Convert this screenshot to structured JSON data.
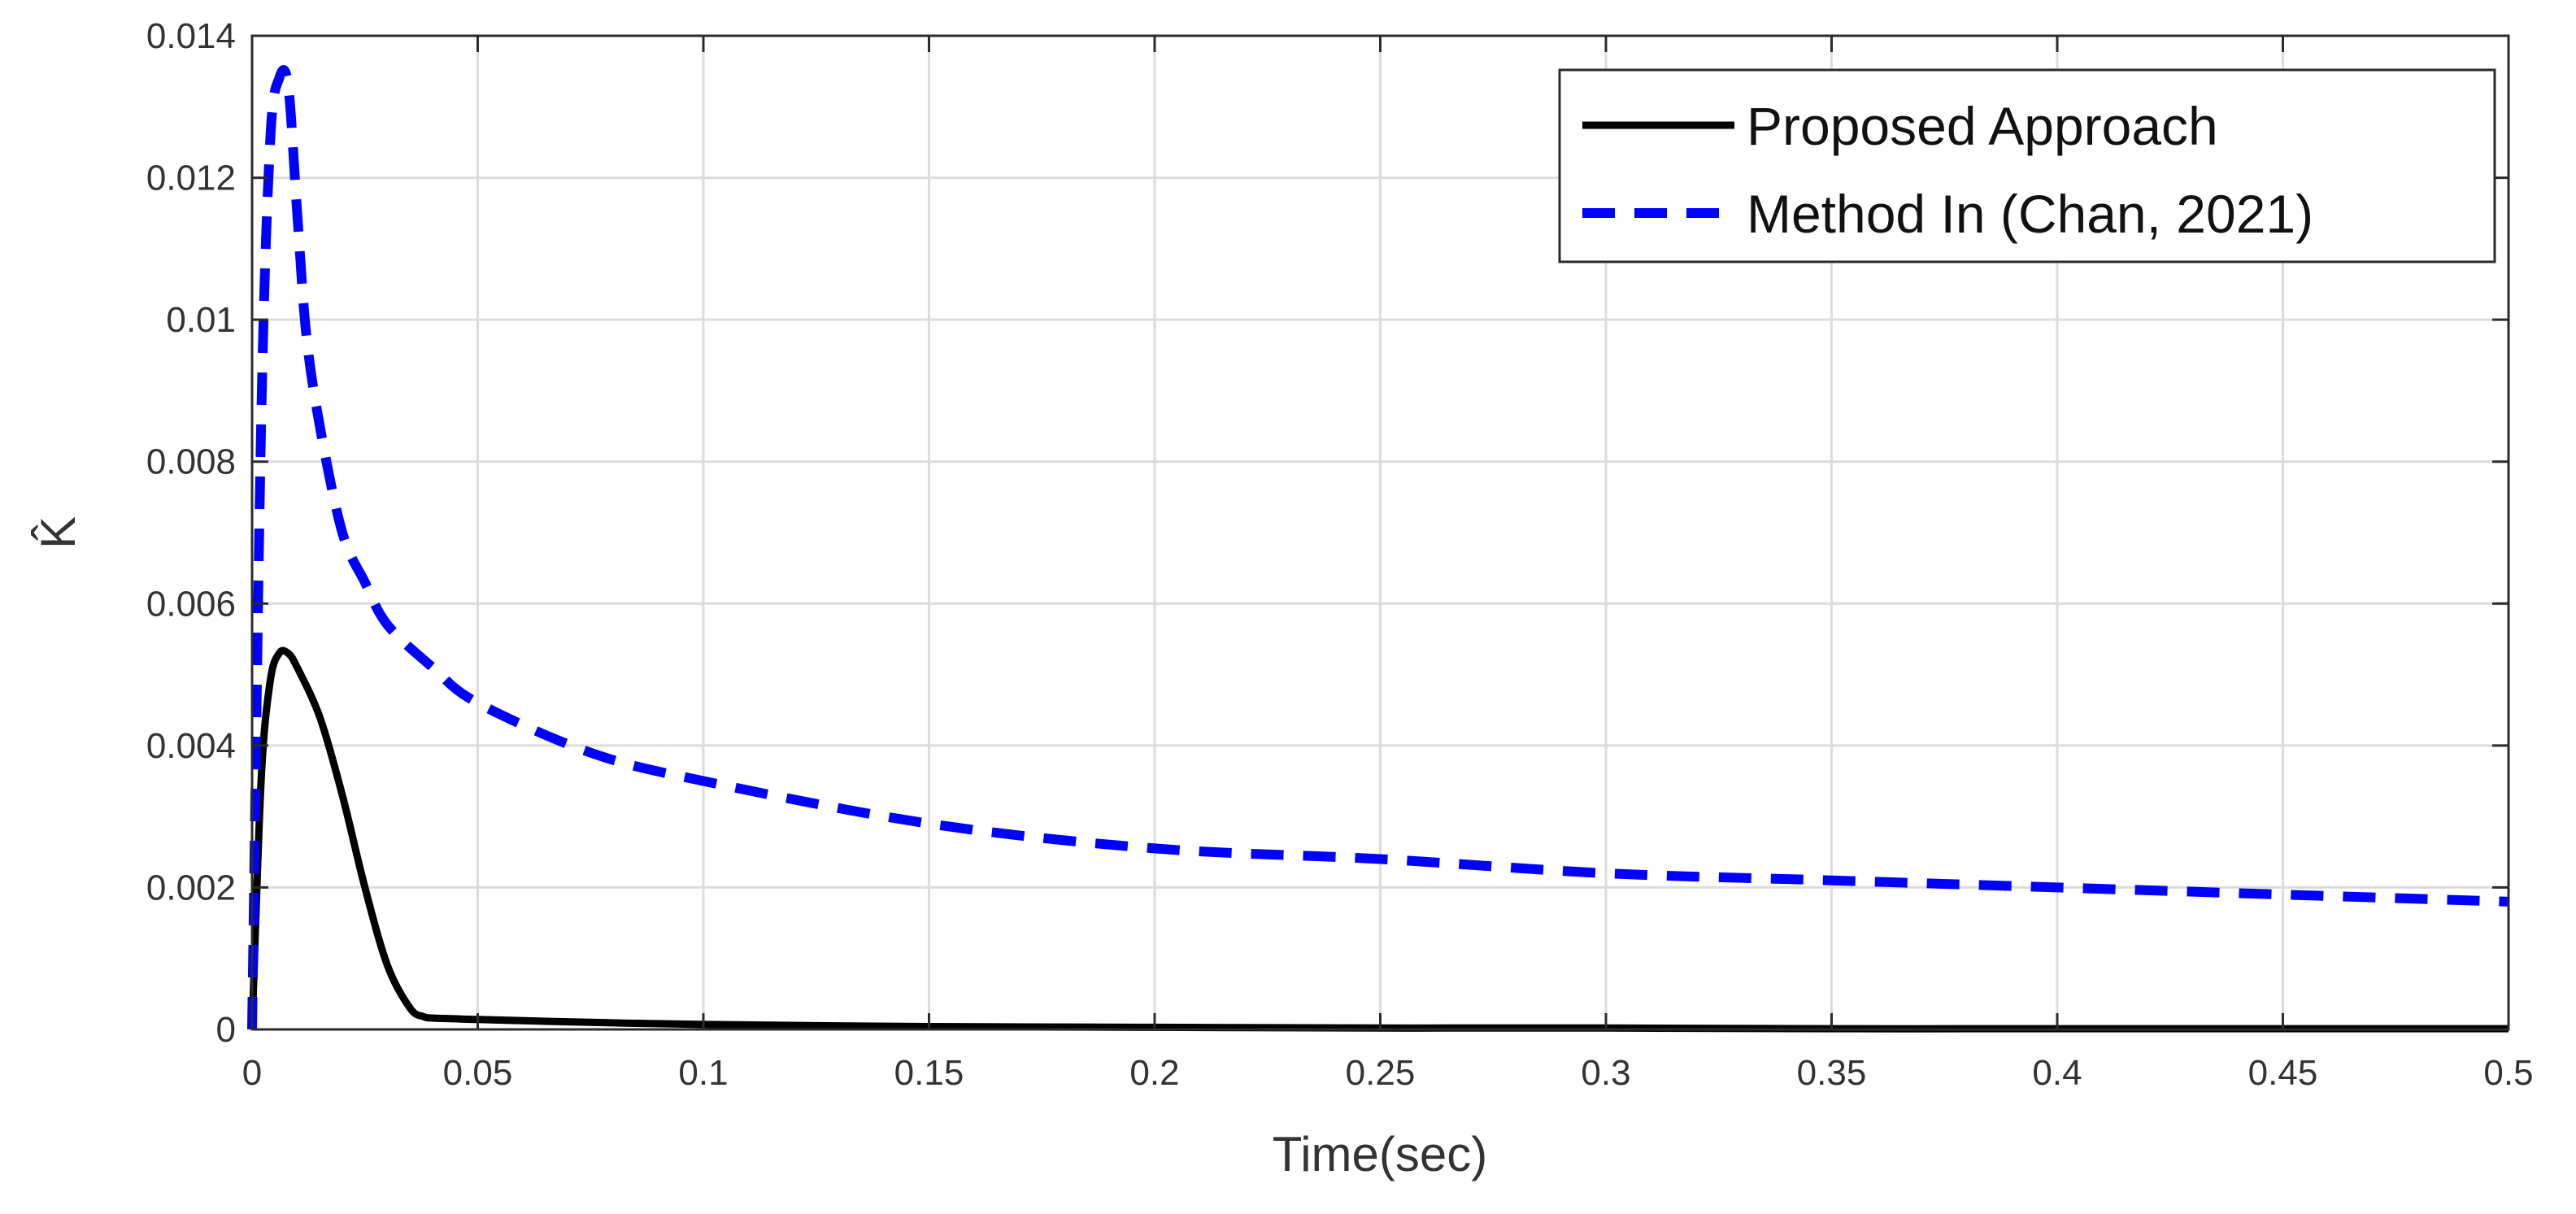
{
  "chart_data": {
    "type": "line",
    "xlabel": "Time(sec)",
    "ylabel": "K̂",
    "xlim": [
      0,
      0.5
    ],
    "ylim": [
      0,
      0.014
    ],
    "x_ticks": [
      "0",
      "0.05",
      "0.1",
      "0.15",
      "0.2",
      "0.25",
      "0.3",
      "0.35",
      "0.4",
      "0.45",
      "0.5"
    ],
    "y_ticks": [
      "0",
      "0.002",
      "0.004",
      "0.006",
      "0.008",
      "0.01",
      "0.012",
      "0.014"
    ],
    "grid": true,
    "legend_position": "top-right",
    "series": [
      {
        "name": "Proposed Approach",
        "color": "#000000",
        "style": "solid",
        "x": [
          0,
          0.002,
          0.004,
          0.006,
          0.008,
          0.01,
          0.015,
          0.02,
          0.025,
          0.03,
          0.035,
          0.038,
          0.04,
          0.045,
          0.05,
          0.075,
          0.1,
          0.15,
          0.2,
          0.25,
          0.3,
          0.35,
          0.4,
          0.45,
          0.5
        ],
        "y": [
          0,
          0.0035,
          0.0049,
          0.0053,
          0.0053,
          0.0051,
          0.0044,
          0.0033,
          0.002,
          0.0009,
          0.0003,
          0.00018,
          0.00016,
          0.00015,
          0.00014,
          0.0001,
          7e-05,
          4e-05,
          3e-05,
          2e-05,
          2e-05,
          1e-05,
          1e-05,
          1e-05,
          1e-05
        ]
      },
      {
        "name": "Method In (Chan, 2021)",
        "color": "#0000ff",
        "style": "dashed",
        "x": [
          0,
          0.002,
          0.004,
          0.006,
          0.008,
          0.01,
          0.012,
          0.015,
          0.02,
          0.025,
          0.03,
          0.04,
          0.05,
          0.075,
          0.1,
          0.15,
          0.2,
          0.25,
          0.3,
          0.35,
          0.4,
          0.45,
          0.5
        ],
        "y": [
          0,
          0.0085,
          0.0125,
          0.0134,
          0.0133,
          0.0115,
          0.0098,
          0.0085,
          0.007,
          0.0063,
          0.0057,
          0.0051,
          0.0046,
          0.0039,
          0.0035,
          0.0029,
          0.00255,
          0.0024,
          0.0022,
          0.0021,
          0.002,
          0.0019,
          0.0018
        ]
      }
    ]
  }
}
